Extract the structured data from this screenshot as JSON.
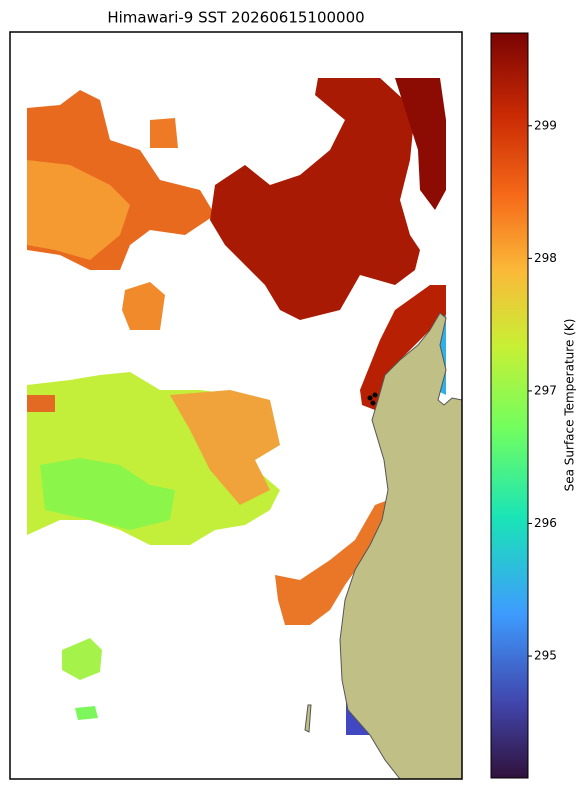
{
  "chart_data": {
    "type": "map",
    "title": "Himawari-9 SST 20260615100000",
    "colorbar": {
      "label": "Sea Surface Temperature (K)",
      "lim": [
        294.08,
        299.7
      ],
      "ticks": [
        295,
        296,
        297,
        298,
        299
      ]
    }
  }
}
